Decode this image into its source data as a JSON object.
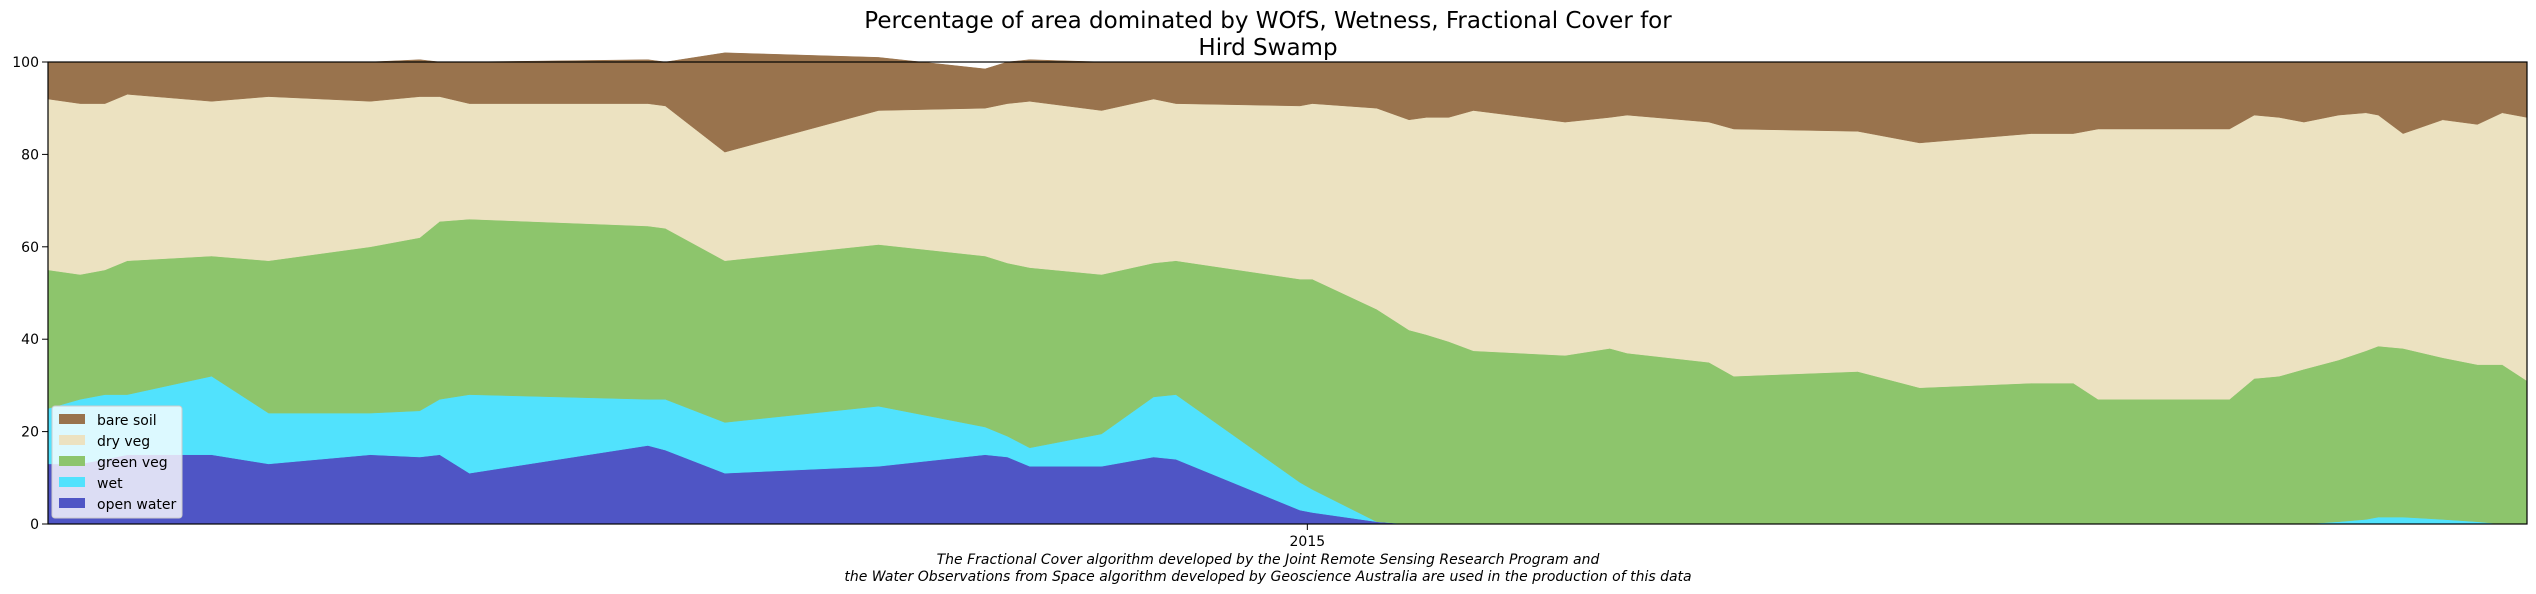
{
  "chart_data": {
    "type": "area",
    "title_lines": [
      "Percentage of area dominated by WOfS, Wetness, Fractional Cover for",
      "Hird Swamp"
    ],
    "xlabel": "",
    "ylabel": "",
    "x_tick_label": "2015",
    "ylim": [
      0,
      100
    ],
    "y_ticks": [
      "0",
      "20",
      "40",
      "60",
      "80",
      "100"
    ],
    "grid": false,
    "legend_position": "lower-left",
    "x": [
      0,
      1.3,
      2.3,
      3.2,
      6.6,
      8.9,
      13.0,
      15.0,
      15.8,
      17.0,
      24.2,
      24.9,
      27.3,
      33.5,
      37.8,
      38.7,
      39.6,
      42.5,
      44.6,
      45.5,
      50.5,
      51.0,
      53.6,
      54.9,
      55.6,
      56.5,
      57.5,
      61.2,
      63.0,
      63.7,
      67.0,
      68.0,
      73.0,
      75.5,
      80.0,
      81.7,
      82.7,
      88.0,
      89.0,
      90.0,
      91.0,
      92.4,
      93.5,
      94.0,
      95.0,
      96.6,
      98.0,
      99.0,
      100.0
    ],
    "series": [
      {
        "name": "open water",
        "color": "#4f55c5",
        "values": [
          13,
          13,
          14,
          15,
          15,
          13,
          15,
          14.5,
          15,
          11,
          17,
          16,
          11,
          12.5,
          15,
          14.5,
          12.5,
          12.5,
          14.5,
          14,
          3,
          2.5,
          0.5,
          0,
          0,
          0,
          0,
          0,
          0,
          0,
          0,
          0,
          0,
          0,
          0,
          0,
          0,
          0,
          0,
          0,
          0,
          0,
          0,
          0,
          0,
          0,
          0,
          0,
          0
        ]
      },
      {
        "name": "wet",
        "color": "#51e2fd",
        "values": [
          12,
          14,
          14,
          13,
          17,
          11,
          9,
          10,
          12,
          17,
          10,
          11,
          11,
          13,
          6,
          4.5,
          4,
          7,
          13,
          14,
          6,
          5,
          0,
          0,
          0,
          0,
          0,
          0,
          0,
          0,
          0,
          0,
          0,
          0,
          0,
          0,
          0,
          0,
          0,
          0,
          0,
          0.5,
          1,
          1.5,
          1.5,
          1,
          0.5,
          0,
          0
        ]
      },
      {
        "name": "green veg",
        "color": "#8dc56c",
        "values": [
          30,
          27,
          27,
          29,
          26,
          33,
          36,
          37.5,
          38.5,
          38,
          37.5,
          37,
          35,
          35,
          37,
          37.5,
          39,
          34.5,
          29,
          29,
          44,
          45.5,
          46,
          42,
          41,
          39.5,
          37.5,
          36.5,
          38,
          37,
          35,
          32,
          33,
          29.5,
          30.5,
          30.5,
          27,
          27,
          31.5,
          32,
          33.5,
          35,
          36.5,
          37,
          36.5,
          35,
          34,
          34.5,
          31
        ]
      },
      {
        "name": "dry veg",
        "color": "#ece2c1",
        "values": [
          37,
          37,
          36,
          36,
          33.5,
          35.5,
          31.5,
          30.5,
          27,
          25,
          26.5,
          26.5,
          23.5,
          29,
          32,
          34.5,
          36,
          35.5,
          35.5,
          34,
          37.5,
          38,
          43.5,
          45.5,
          47,
          48.5,
          52,
          50.5,
          50,
          51.5,
          52,
          53.5,
          52,
          53,
          54,
          54,
          58.5,
          58.5,
          57,
          56,
          53.5,
          53,
          51.5,
          50,
          46.5,
          51.5,
          52,
          54.5,
          57
        ]
      },
      {
        "name": "bare soil",
        "color": "#99734d",
        "values": [
          8,
          9,
          9,
          7,
          8.5,
          7.5,
          8.5,
          8,
          7.5,
          9,
          9.5,
          9.5,
          21.5,
          11.5,
          8.5,
          9,
          9,
          10.5,
          8,
          9,
          9.5,
          9,
          10,
          12.5,
          12,
          12,
          10.5,
          13,
          12,
          11.5,
          13,
          14.5,
          15,
          17.5,
          15.5,
          15.5,
          14.5,
          14.5,
          11.5,
          12,
          13,
          11.5,
          11,
          11.5,
          15.5,
          12.5,
          13.5,
          11,
          12
        ]
      }
    ],
    "legend_order": [
      "bare soil",
      "dry veg",
      "green veg",
      "wet",
      "open water"
    ],
    "x_tick_position": 50.8
  },
  "caption_lines": [
    "The Fractional Cover algorithm developed by the Joint Remote Sensing Research Program and",
    "the Water Observations from Space algorithm developed by Geoscience Australia are used in the production of this data"
  ]
}
